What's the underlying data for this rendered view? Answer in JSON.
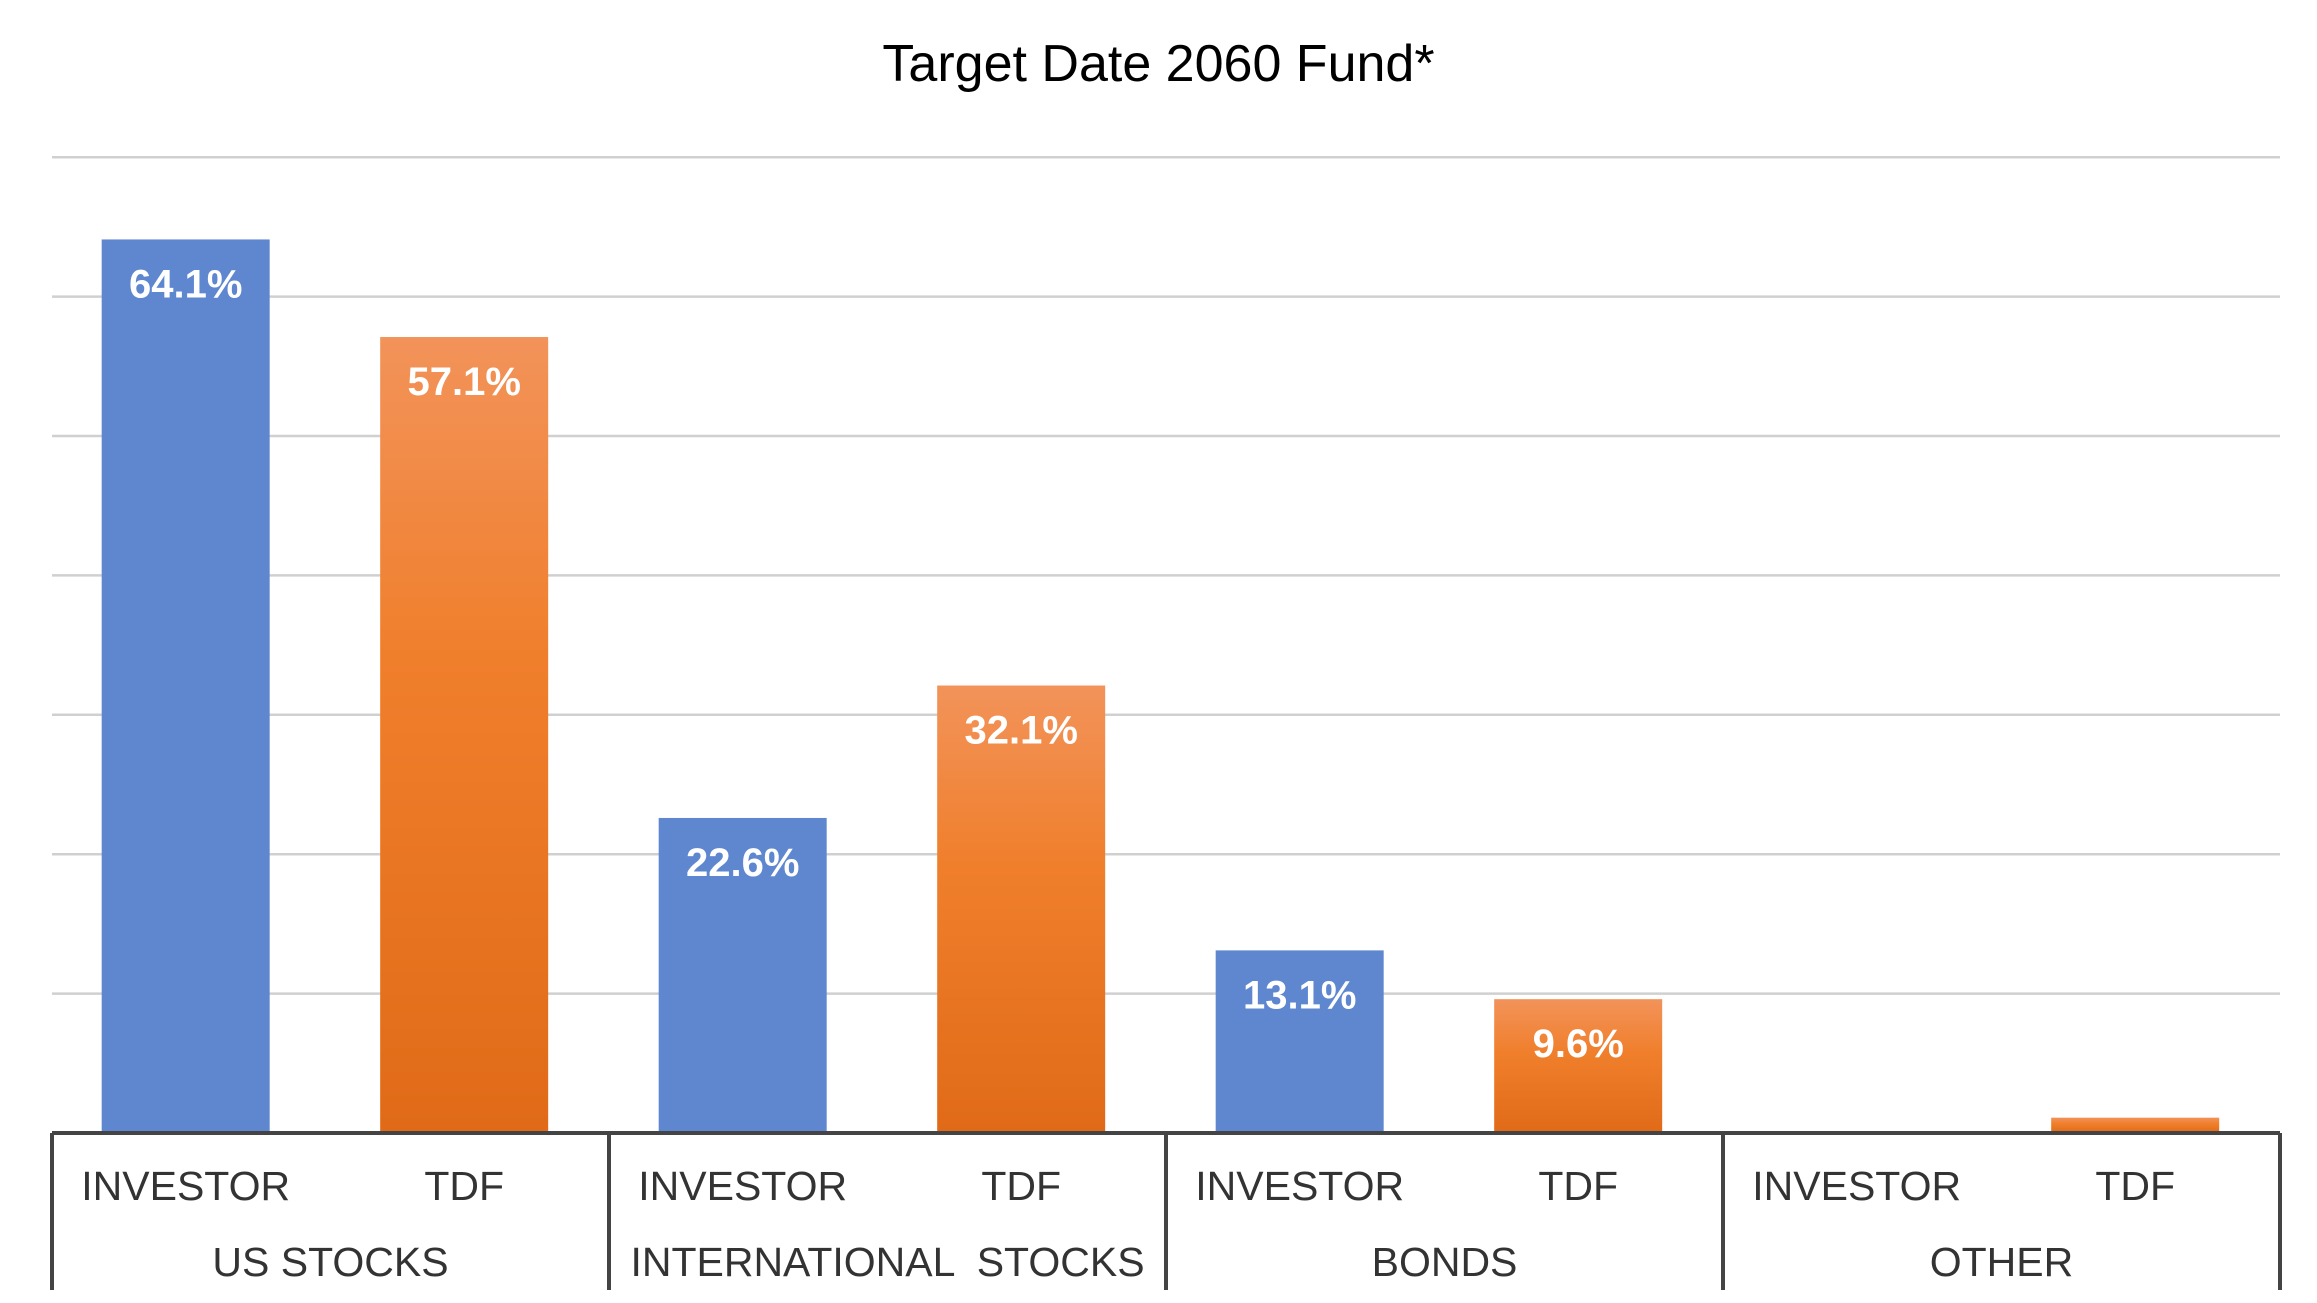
{
  "chart_data": {
    "type": "bar",
    "title": "Target Date 2060 Fund*",
    "xlabel": "",
    "ylabel": "",
    "ylim": [
      0,
      70
    ],
    "grid": true,
    "legend": "none",
    "groups": [
      {
        "name": "US STOCKS",
        "categories": [
          "INVESTOR",
          "TDF"
        ],
        "values": [
          64.1,
          57.1
        ],
        "labels": [
          "64.1%",
          "57.1%"
        ]
      },
      {
        "name": "INTERNATIONAL  STOCKS",
        "categories": [
          "INVESTOR",
          "TDF"
        ],
        "values": [
          22.6,
          32.1
        ],
        "labels": [
          "22.6%",
          "32.1%"
        ]
      },
      {
        "name": "BONDS",
        "categories": [
          "INVESTOR",
          "TDF"
        ],
        "values": [
          13.1,
          9.6
        ],
        "labels": [
          "13.1%",
          "9.6%"
        ]
      },
      {
        "name": "OTHER",
        "categories": [
          "INVESTOR",
          "TDF"
        ],
        "values": [
          0,
          1.1
        ],
        "labels": [
          "",
          ""
        ]
      }
    ],
    "colors": {
      "INVESTOR": "#5f87cf",
      "TDF": "#f07f2c",
      "TDF_light": "#f2935a",
      "TDF_dark": "#e06a17",
      "grid": "#d0d0d0",
      "axis": "#444444"
    }
  }
}
